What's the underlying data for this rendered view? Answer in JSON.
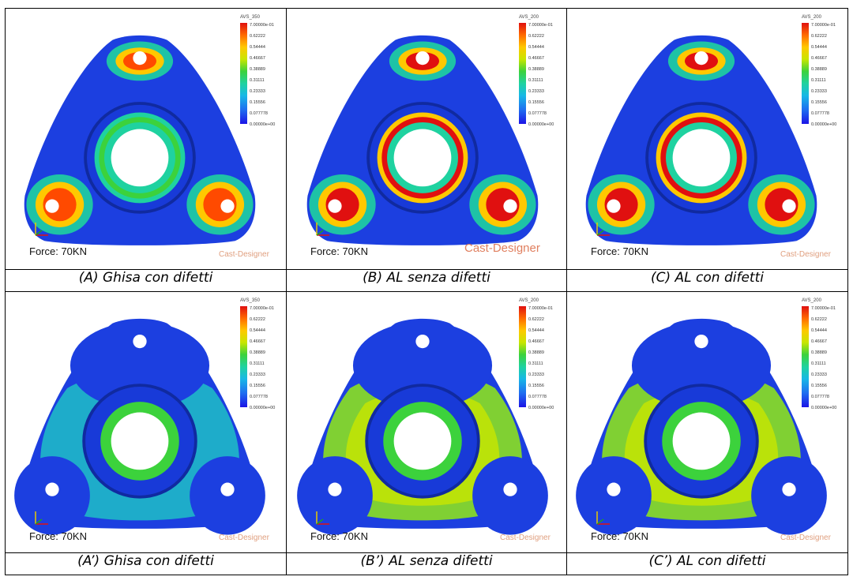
{
  "legend_ticks": [
    "7.00000e-01",
    "0.62222",
    "0.54444",
    "0.46667",
    "0.38889",
    "0.31111",
    "0.23333",
    "0.15556",
    "0.077778",
    "0.00000e+00"
  ],
  "panels": [
    {
      "legend_title": "AVS_350",
      "force": "Force: 70KN",
      "brand": "Cast-Designer",
      "caption": "(A) Ghisa con difetti"
    },
    {
      "legend_title": "AVS_200",
      "force": "Force: 70KN",
      "brand": "Cast-Designer",
      "caption": "(B) AL senza difetti"
    },
    {
      "legend_title": "AVS_200",
      "force": "Force: 70KN",
      "brand": "Cast-Designer",
      "caption": "(C) AL con difetti"
    },
    {
      "legend_title": "AVS_350",
      "force": "Force: 70KN",
      "brand": "Cast-Designer",
      "caption": "(A’) Ghisa con difetti"
    },
    {
      "legend_title": "AVS_200",
      "force": "Force: 70KN",
      "brand": "Cast-Designer",
      "caption": "(B’) AL senza difetti"
    },
    {
      "legend_title": "AVS_200",
      "force": "Force: 70KN",
      "brand": "Cast-Designer",
      "caption": "(C’) AL con difetti"
    }
  ],
  "colors": {
    "low": "#1c14e6",
    "mid": "#3cd23c",
    "high": "#e01010"
  }
}
